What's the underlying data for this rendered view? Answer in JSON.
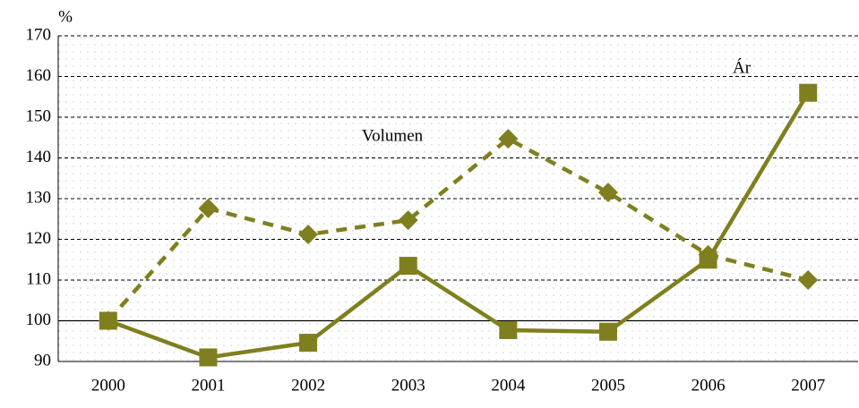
{
  "chart_data": {
    "type": "line",
    "y_label": "%",
    "categories": [
      "2000",
      "2001",
      "2002",
      "2003",
      "2004",
      "2005",
      "2006",
      "2007"
    ],
    "series": [
      {
        "name": "Ár",
        "color": "#7f7f1f",
        "line_style": "solid",
        "marker": "square",
        "values": [
          100,
          91,
          94.6,
          113.5,
          97.7,
          97.3,
          115,
          156
        ]
      },
      {
        "name": "Volumen",
        "color": "#7f7f1f",
        "line_style": "dashed",
        "marker": "diamond",
        "values": [
          100,
          127.6,
          121.2,
          124.7,
          144.7,
          131.5,
          116.2,
          110
        ]
      }
    ],
    "ylim": [
      90,
      170
    ],
    "yticks": [
      90,
      100,
      110,
      120,
      130,
      140,
      150,
      160,
      170
    ],
    "grid": true,
    "reference_line": 100
  }
}
